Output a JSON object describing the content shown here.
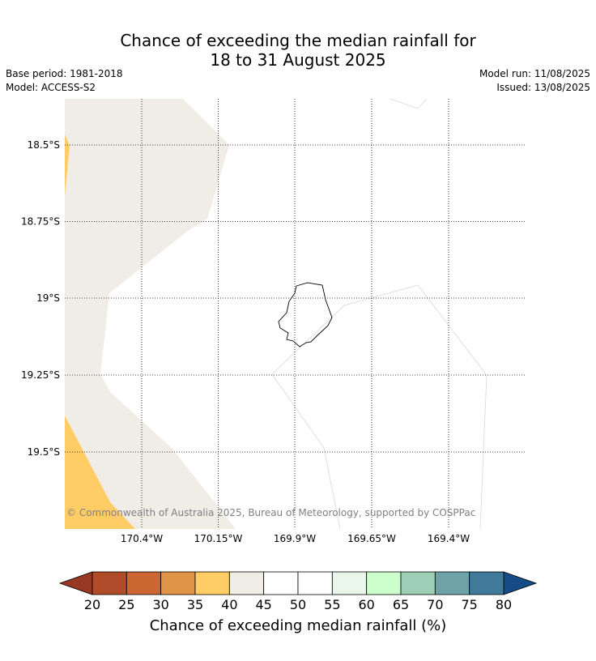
{
  "header": {
    "title_line1": "Chance of exceeding the median rainfall for",
    "title_line2": "18 to 31 August 2025",
    "base_period": "Base period: 1981-2018",
    "model": "Model: ACCESS-S2",
    "model_run": "Model run: 11/08/2025",
    "issued": "Issued: 13/08/2025"
  },
  "map": {
    "longitude_labels": [
      "170.4°W",
      "170.15°W",
      "169.9°W",
      "169.65°W",
      "169.4°W"
    ],
    "latitude_labels": [
      "18.5°S",
      "18.75°S",
      "19°S",
      "19.25°S",
      "19.5°S"
    ],
    "copyright": "© Commonwealth of Australia 2025, Bureau of Meteorology, supported by COSPPac",
    "fill_colors": {
      "light_band": "#f0ece6",
      "orange_band": "#ffcc66"
    }
  },
  "colorbar": {
    "title": "Chance of exceeding median rainfall (%)",
    "ticks": [
      "20",
      "25",
      "30",
      "35",
      "40",
      "45",
      "50",
      "55",
      "60",
      "65",
      "70",
      "75",
      "80"
    ],
    "under_color": "#973822",
    "over_color": "#164c85",
    "colors": [
      "#b04c29",
      "#cc6633",
      "#e09448",
      "#ffcc66",
      "#f0ece6",
      "#ffffff",
      "#ffffff",
      "#eaf6ea",
      "#ccffcc",
      "#9ccfb6",
      "#6fa3a8",
      "#41799a"
    ]
  }
}
